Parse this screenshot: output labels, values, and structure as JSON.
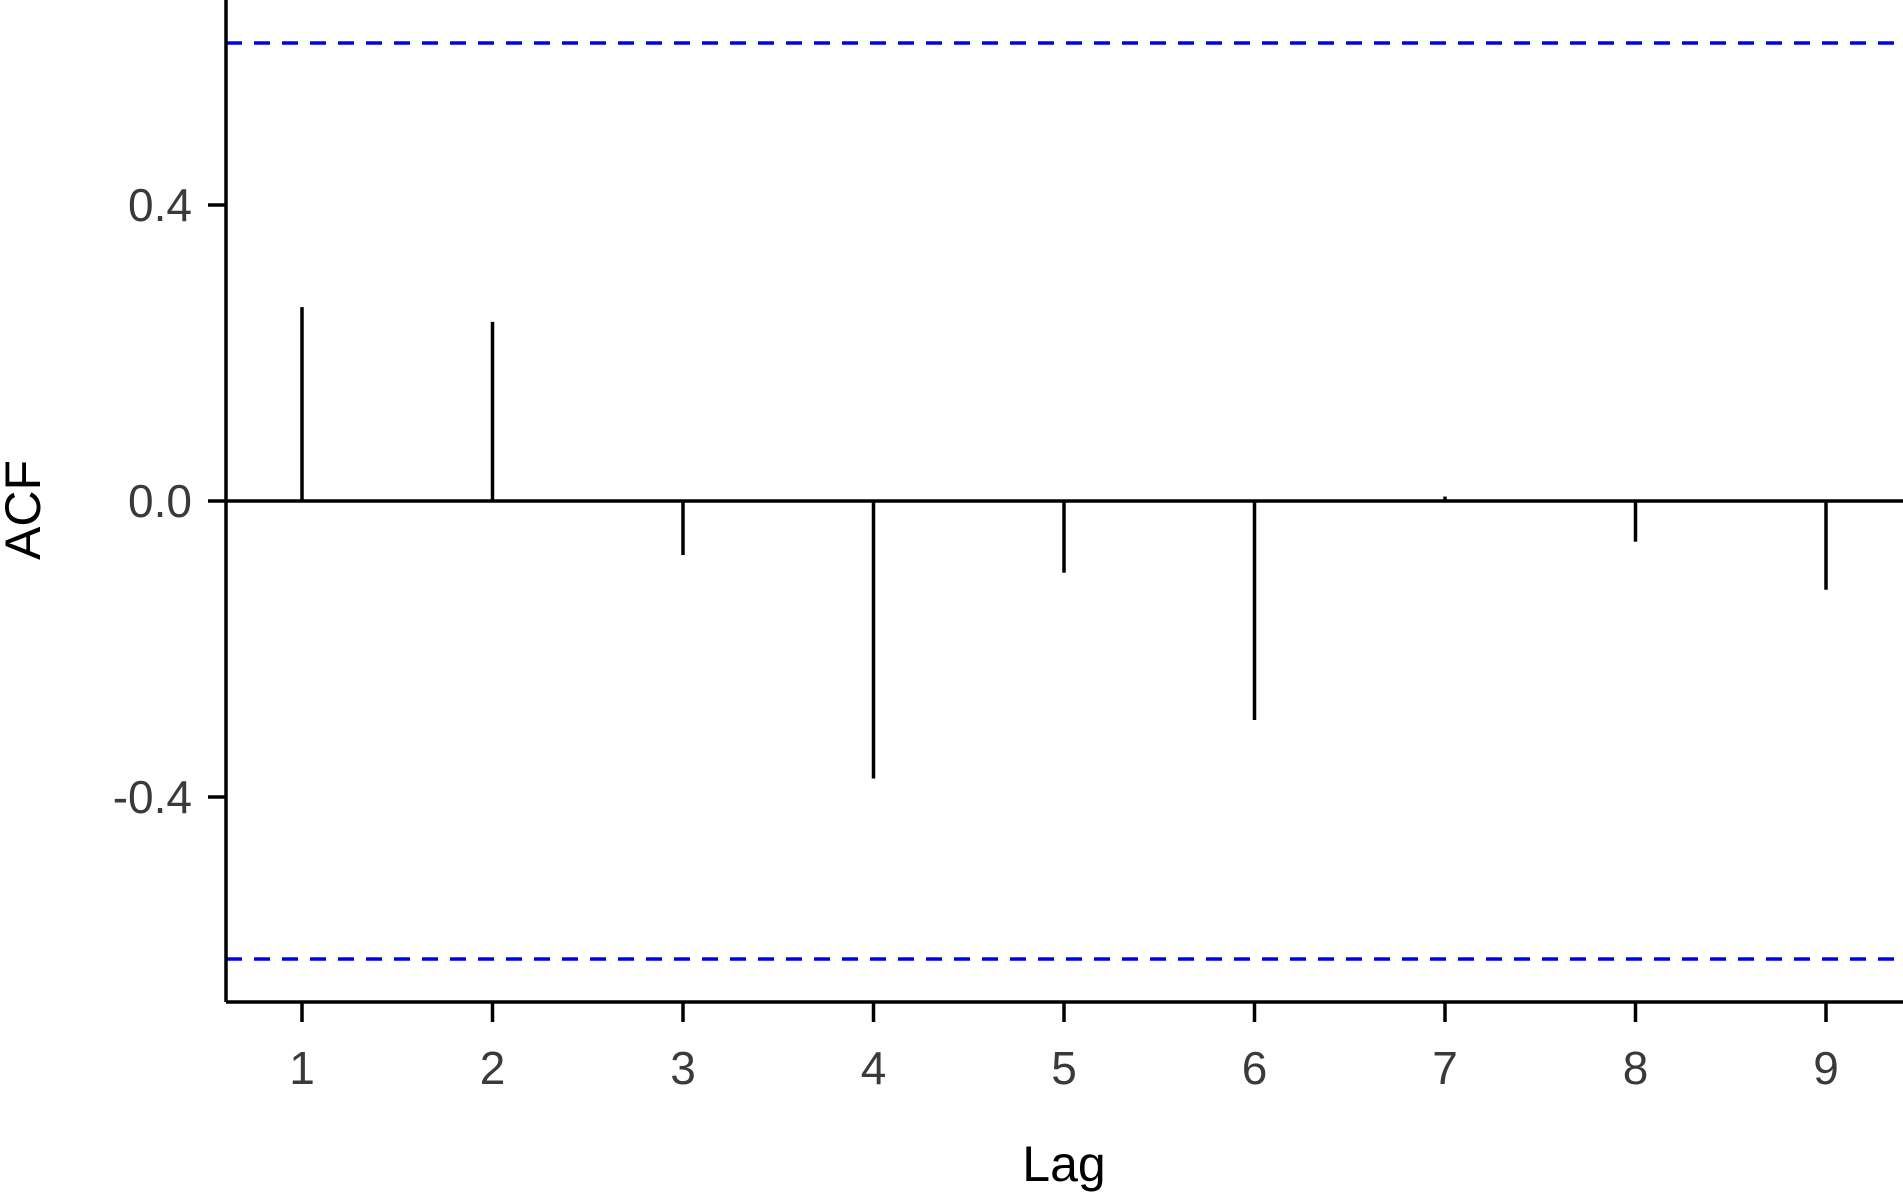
{
  "chart_data": {
    "type": "bar",
    "subtype": "acf-stem",
    "xlabel": "Lag",
    "ylabel": "ACF",
    "x": [
      1,
      2,
      3,
      4,
      5,
      6,
      7,
      8,
      9
    ],
    "x_tick_labels": [
      "1",
      "2",
      "3",
      "4",
      "5",
      "6",
      "7",
      "8",
      "9"
    ],
    "values": [
      0.262,
      0.242,
      -0.073,
      -0.375,
      -0.097,
      -0.296,
      0.006,
      -0.055,
      -0.12
    ],
    "y_ticks": [
      0.4,
      0.0,
      -0.4
    ],
    "y_tick_labels": [
      "0.4",
      "0.0",
      "-0.4"
    ],
    "confidence_bounds": [
      0.619,
      -0.619
    ],
    "xlim": [
      0.6,
      9.4
    ],
    "ylim": [
      -0.68,
      0.68
    ],
    "grid": false,
    "zero_line": true,
    "colors": {
      "stems": "#000000",
      "confidence_bounds": "#0000ee",
      "axes": "#000000",
      "tick_labels": "#3a3a3a"
    }
  }
}
